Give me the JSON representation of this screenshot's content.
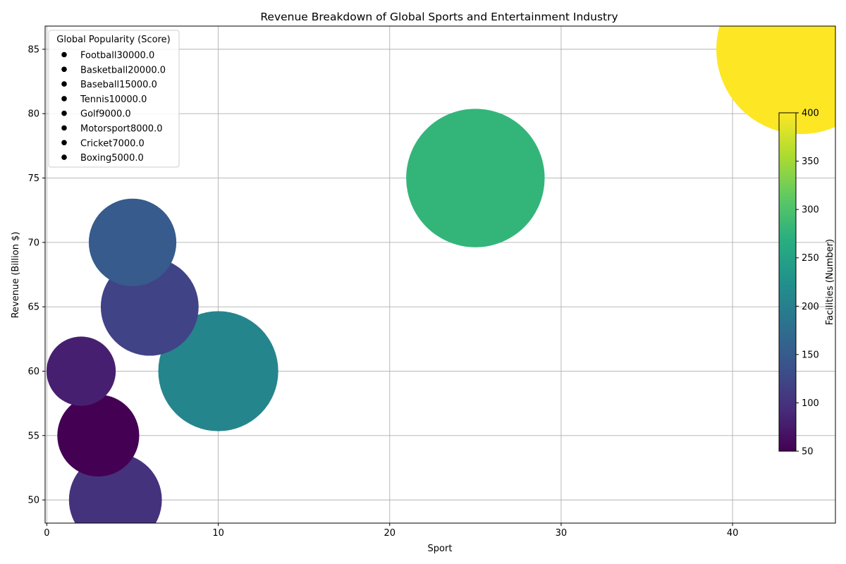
{
  "chart_data": {
    "type": "scatter",
    "title": "Revenue Breakdown of Global Sports and Entertainment Industry",
    "xlabel": "Sport",
    "ylabel": "Revenue (Billion $)",
    "xlim": [
      -0.1,
      46
    ],
    "ylim": [
      48.2,
      86.8
    ],
    "xticks": [
      0,
      10,
      20,
      30,
      40
    ],
    "yticks": [
      50,
      55,
      60,
      65,
      70,
      75,
      80,
      85
    ],
    "grid": true,
    "size_encoding": "Global Popularity (Score)",
    "color_encoding": "Facilities (Number)",
    "colormap": "viridis",
    "color_range": [
      50,
      400
    ],
    "colorbar_ticks": [
      50,
      100,
      150,
      200,
      250,
      300,
      350,
      400
    ],
    "legend": {
      "title": "Global Popularity (Score)",
      "placement": "top-left",
      "entries": [
        "Football30000.0",
        "Basketball20000.0",
        "Baseball15000.0",
        "Tennis10000.0",
        "Golf9000.0",
        "Motorsport8000.0",
        "Cricket7000.0",
        "Boxing5000.0"
      ]
    },
    "points": [
      {
        "x": 44,
        "y": 85,
        "size": 30000,
        "facilities": 400
      },
      {
        "x": 25,
        "y": 75,
        "size": 20000,
        "facilities": 280
      },
      {
        "x": 10,
        "y": 60,
        "size": 15000,
        "facilities": 210
      },
      {
        "x": 6,
        "y": 65,
        "size": 10000,
        "facilities": 120
      },
      {
        "x": 4,
        "y": 50,
        "size": 9000,
        "facilities": 100
      },
      {
        "x": 5,
        "y": 70,
        "size": 8000,
        "facilities": 150
      },
      {
        "x": 3,
        "y": 55,
        "size": 7000,
        "facilities": 50
      },
      {
        "x": 2,
        "y": 60,
        "size": 5000,
        "facilities": 80
      }
    ]
  }
}
